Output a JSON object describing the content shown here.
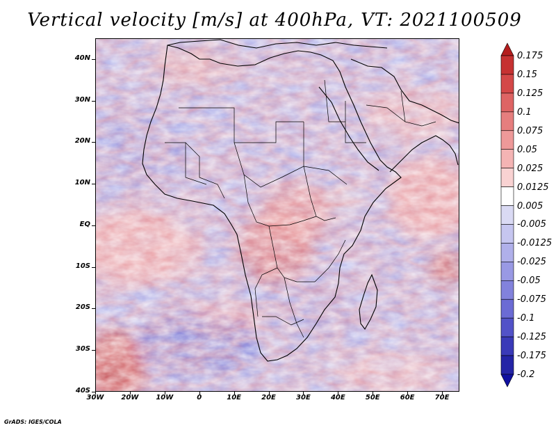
{
  "title": {
    "variable": "Vertical velocity [m/s] at 400hPa,",
    "valid_time": "VT: 2021100509"
  },
  "map": {
    "projection": "lat-lon",
    "lon_range": [
      -30,
      75
    ],
    "lat_range": [
      -40,
      45
    ],
    "lat_labels": [
      {
        "value": 40,
        "text": "40N"
      },
      {
        "value": 30,
        "text": "30N"
      },
      {
        "value": 20,
        "text": "20N"
      },
      {
        "value": 10,
        "text": "10N"
      },
      {
        "value": 0,
        "text": "EQ"
      },
      {
        "value": -10,
        "text": "10S"
      },
      {
        "value": -20,
        "text": "20S"
      },
      {
        "value": -30,
        "text": "30S"
      },
      {
        "value": -40,
        "text": "40S"
      }
    ],
    "lon_labels": [
      {
        "value": -30,
        "text": "30W"
      },
      {
        "value": -20,
        "text": "20W"
      },
      {
        "value": -10,
        "text": "10W"
      },
      {
        "value": 0,
        "text": "0"
      },
      {
        "value": 10,
        "text": "10E"
      },
      {
        "value": 20,
        "text": "20E"
      },
      {
        "value": 30,
        "text": "30E"
      },
      {
        "value": 40,
        "text": "40E"
      },
      {
        "value": 50,
        "text": "50E"
      },
      {
        "value": 60,
        "text": "60E"
      },
      {
        "value": 70,
        "text": "70E"
      }
    ]
  },
  "colorbar": {
    "levels": [
      "0.175",
      "0.15",
      "0.125",
      "0.1",
      "0.075",
      "0.05",
      "0.025",
      "0.0125",
      "0.005",
      "-0.005",
      "-0.0125",
      "-0.025",
      "-0.05",
      "-0.075",
      "-0.1",
      "-0.125",
      "-0.175",
      "-0.2"
    ],
    "colors": [
      "#b41e1e",
      "#c63232",
      "#d44848",
      "#de6464",
      "#e67e7e",
      "#ee9999",
      "#f4b4b4",
      "#f9d2d2",
      "#ffffff",
      "#dadaf4",
      "#c6c6f0",
      "#b0b0ea",
      "#9999e4",
      "#8282dc",
      "#6b6bd4",
      "#5252c8",
      "#3a3ab8",
      "#2424a6",
      "#1010a0"
    ]
  },
  "credit": "GrADS: IGES/COLA"
}
